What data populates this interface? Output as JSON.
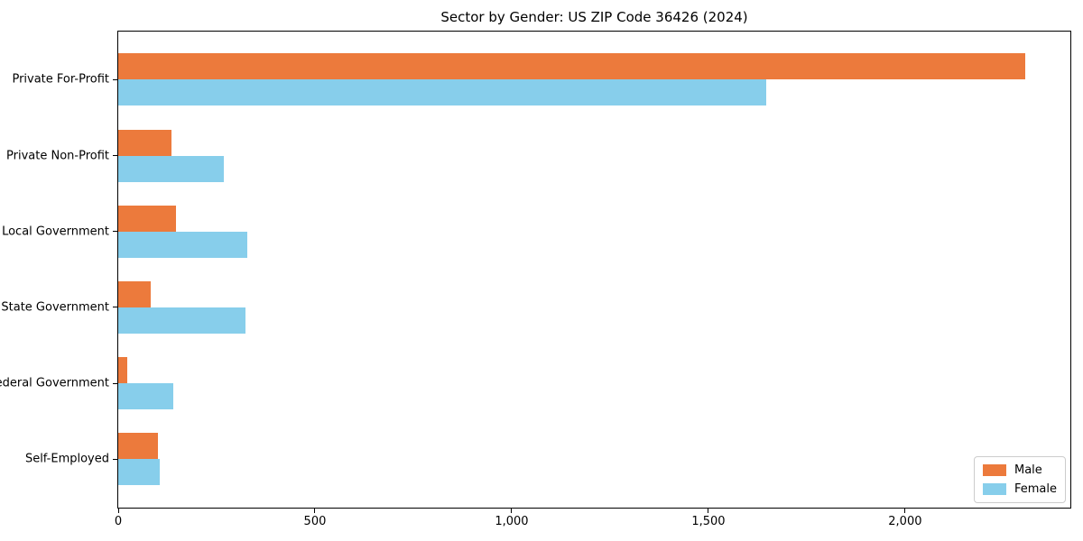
{
  "figure": {
    "background": "#ffffff"
  },
  "chart_data": {
    "type": "bar",
    "orientation": "horizontal",
    "title": "Sector by Gender: US ZIP Code 36426 (2024)",
    "categories": [
      "Private For-Profit",
      "Private Non-Profit",
      "Local Government",
      "State Government",
      "Federal Government",
      "Self-Employed"
    ],
    "series": [
      {
        "name": "Male",
        "color": "#ec7a3c",
        "values": [
          2305,
          135,
          147,
          82,
          22,
          101
        ]
      },
      {
        "name": "Female",
        "color": "#87ceeb",
        "values": [
          1646,
          268,
          328,
          324,
          139,
          106
        ]
      }
    ],
    "xlabel": "",
    "ylabel": "",
    "xlim": [
      0,
      2420
    ],
    "xticks": [
      0,
      500,
      1000,
      1500,
      2000
    ],
    "xtick_labels": [
      "0",
      "500",
      "1,000",
      "1,500",
      "2,000"
    ],
    "grid": false,
    "axis_color": "#000000",
    "legend": {
      "position": "lower-right",
      "labels": [
        "Male",
        "Female"
      ],
      "border_color": "#cccccc"
    }
  }
}
